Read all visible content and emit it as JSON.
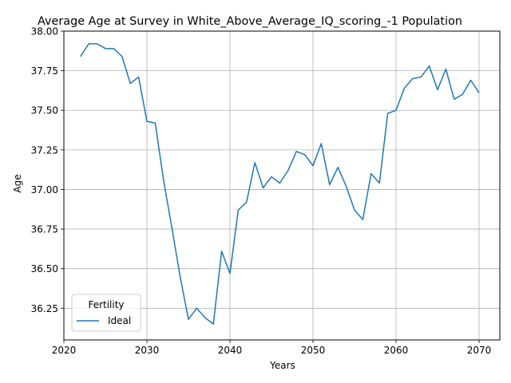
{
  "chart_data": {
    "type": "line",
    "title": "Average Age at Survey in White_Above_Average_IQ_scoring_-1 Population",
    "xlabel": "Years",
    "ylabel": "Age",
    "xlim": [
      2020,
      2072.5
    ],
    "ylim": [
      36.05,
      38.0
    ],
    "xticks": [
      2020,
      2030,
      2040,
      2050,
      2060,
      2070
    ],
    "yticks": [
      36.25,
      36.5,
      36.75,
      37.0,
      37.25,
      37.5,
      37.75,
      38.0
    ],
    "ytick_labels": [
      "36.25",
      "36.50",
      "36.75",
      "37.00",
      "37.25",
      "37.50",
      "37.75",
      "38.00"
    ],
    "grid": true,
    "legend": {
      "title": "Fertility",
      "placement": "lower-left"
    },
    "series": [
      {
        "name": "Ideal",
        "color": "#1f77b4",
        "x": [
          2022,
          2023,
          2024,
          2025,
          2026,
          2027,
          2028,
          2029,
          2030,
          2031,
          2032,
          2033,
          2034,
          2035,
          2036,
          2037,
          2038,
          2039,
          2040,
          2041,
          2042,
          2043,
          2044,
          2045,
          2046,
          2047,
          2048,
          2049,
          2050,
          2051,
          2052,
          2053,
          2054,
          2055,
          2056,
          2057,
          2058,
          2059,
          2060,
          2061,
          2062,
          2063,
          2064,
          2065,
          2066,
          2067,
          2068,
          2069,
          2070
        ],
        "y": [
          37.84,
          37.92,
          37.92,
          37.89,
          37.89,
          37.84,
          37.67,
          37.71,
          37.43,
          37.42,
          37.06,
          36.76,
          36.45,
          36.18,
          36.25,
          36.19,
          36.15,
          36.61,
          36.47,
          36.87,
          36.92,
          37.17,
          37.01,
          37.08,
          37.04,
          37.12,
          37.24,
          37.22,
          37.15,
          37.29,
          37.03,
          37.14,
          37.02,
          36.87,
          36.81,
          37.1,
          37.04,
          37.48,
          37.5,
          37.64,
          37.7,
          37.71,
          37.78,
          37.63,
          37.76,
          37.57,
          37.6,
          37.69,
          37.61
        ]
      }
    ]
  }
}
